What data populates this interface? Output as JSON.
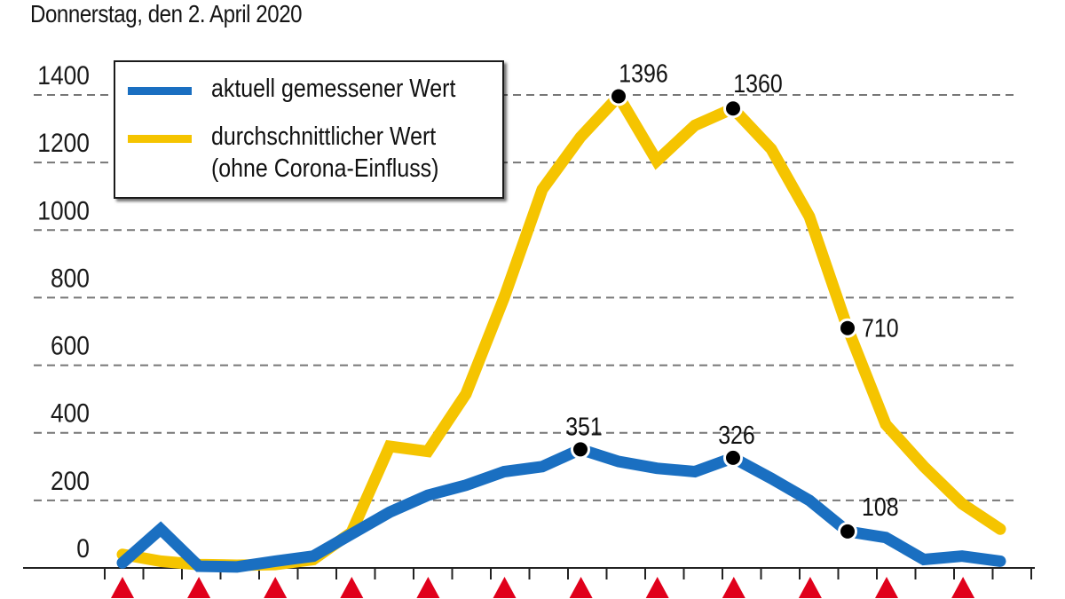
{
  "header": {
    "date": "Donnerstag, den 2. April 2020"
  },
  "legend": {
    "items": [
      {
        "label": "aktuell gemessener Wert",
        "color": "#1a6fc1"
      },
      {
        "label": "durchschnittlicher Wert",
        "label2": "(ohne Corona-Einfluss)",
        "color": "#f5c400"
      }
    ]
  },
  "colors": {
    "current": "#1a6fc1",
    "average": "#f5c400",
    "marker": "#000000",
    "triangle": "#e0001b",
    "grid": "#777777"
  },
  "chart_data": {
    "type": "line",
    "title": "Donnerstag, den 2. April 2020",
    "xlabel": "",
    "ylabel": "",
    "ylim": [
      0,
      1400
    ],
    "yticks": [
      0,
      200,
      400,
      600,
      800,
      1000,
      1200,
      1400
    ],
    "grid": "horizontal dashed",
    "legend_position": "top-left",
    "x": [
      1,
      2,
      3,
      4,
      5,
      6,
      7,
      8,
      9,
      10,
      11,
      12,
      13,
      14,
      15,
      16,
      17,
      18,
      19,
      20,
      21,
      22,
      23,
      24
    ],
    "series": [
      {
        "name": "aktuell gemessener Wert",
        "values": [
          15,
          115,
          5,
          3,
          20,
          35,
          100,
          165,
          215,
          245,
          285,
          300,
          351,
          315,
          295,
          285,
          326,
          265,
          200,
          108,
          90,
          25,
          35,
          20
        ]
      },
      {
        "name": "durchschnittlicher Wert (ohne Corona-Einfluss)",
        "values": [
          40,
          20,
          10,
          8,
          10,
          25,
          105,
          360,
          345,
          515,
          800,
          1120,
          1275,
          1396,
          1205,
          1310,
          1360,
          1240,
          1040,
          710,
          425,
          300,
          190,
          115
        ]
      }
    ],
    "annotations": [
      {
        "series": "durchschnittlicher Wert",
        "index": 13,
        "label": "1396"
      },
      {
        "series": "durchschnittlicher Wert",
        "index": 16,
        "label": "1360"
      },
      {
        "series": "durchschnittlicher Wert",
        "index": 19,
        "label": "710"
      },
      {
        "series": "aktuell gemessener Wert",
        "index": 12,
        "label": "351"
      },
      {
        "series": "aktuell gemessener Wert",
        "index": 16,
        "label": "326"
      },
      {
        "series": "aktuell gemessener Wert",
        "index": 19,
        "label": "108"
      }
    ],
    "x_markers": {
      "shape": "red-triangle",
      "count": 12,
      "every_n_points": 2
    }
  }
}
